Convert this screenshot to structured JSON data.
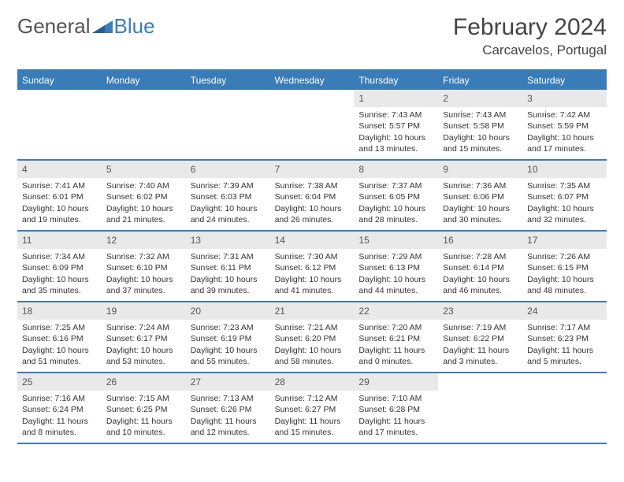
{
  "brand": {
    "part1": "General",
    "part2": "Blue"
  },
  "title": "February 2024",
  "location": "Carcavelos, Portugal",
  "colors": {
    "accent": "#3a7cb8",
    "header_bg": "#e9e9e9",
    "text": "#333333",
    "muted": "#555555",
    "white": "#ffffff"
  },
  "weekdays": [
    "Sunday",
    "Monday",
    "Tuesday",
    "Wednesday",
    "Thursday",
    "Friday",
    "Saturday"
  ],
  "weeks": [
    [
      {
        "n": "",
        "sunrise": "",
        "sunset": "",
        "daylight": ""
      },
      {
        "n": "",
        "sunrise": "",
        "sunset": "",
        "daylight": ""
      },
      {
        "n": "",
        "sunrise": "",
        "sunset": "",
        "daylight": ""
      },
      {
        "n": "",
        "sunrise": "",
        "sunset": "",
        "daylight": ""
      },
      {
        "n": "1",
        "sunrise": "Sunrise: 7:43 AM",
        "sunset": "Sunset: 5:57 PM",
        "daylight": "Daylight: 10 hours and 13 minutes."
      },
      {
        "n": "2",
        "sunrise": "Sunrise: 7:43 AM",
        "sunset": "Sunset: 5:58 PM",
        "daylight": "Daylight: 10 hours and 15 minutes."
      },
      {
        "n": "3",
        "sunrise": "Sunrise: 7:42 AM",
        "sunset": "Sunset: 5:59 PM",
        "daylight": "Daylight: 10 hours and 17 minutes."
      }
    ],
    [
      {
        "n": "4",
        "sunrise": "Sunrise: 7:41 AM",
        "sunset": "Sunset: 6:01 PM",
        "daylight": "Daylight: 10 hours and 19 minutes."
      },
      {
        "n": "5",
        "sunrise": "Sunrise: 7:40 AM",
        "sunset": "Sunset: 6:02 PM",
        "daylight": "Daylight: 10 hours and 21 minutes."
      },
      {
        "n": "6",
        "sunrise": "Sunrise: 7:39 AM",
        "sunset": "Sunset: 6:03 PM",
        "daylight": "Daylight: 10 hours and 24 minutes."
      },
      {
        "n": "7",
        "sunrise": "Sunrise: 7:38 AM",
        "sunset": "Sunset: 6:04 PM",
        "daylight": "Daylight: 10 hours and 26 minutes."
      },
      {
        "n": "8",
        "sunrise": "Sunrise: 7:37 AM",
        "sunset": "Sunset: 6:05 PM",
        "daylight": "Daylight: 10 hours and 28 minutes."
      },
      {
        "n": "9",
        "sunrise": "Sunrise: 7:36 AM",
        "sunset": "Sunset: 6:06 PM",
        "daylight": "Daylight: 10 hours and 30 minutes."
      },
      {
        "n": "10",
        "sunrise": "Sunrise: 7:35 AM",
        "sunset": "Sunset: 6:07 PM",
        "daylight": "Daylight: 10 hours and 32 minutes."
      }
    ],
    [
      {
        "n": "11",
        "sunrise": "Sunrise: 7:34 AM",
        "sunset": "Sunset: 6:09 PM",
        "daylight": "Daylight: 10 hours and 35 minutes."
      },
      {
        "n": "12",
        "sunrise": "Sunrise: 7:32 AM",
        "sunset": "Sunset: 6:10 PM",
        "daylight": "Daylight: 10 hours and 37 minutes."
      },
      {
        "n": "13",
        "sunrise": "Sunrise: 7:31 AM",
        "sunset": "Sunset: 6:11 PM",
        "daylight": "Daylight: 10 hours and 39 minutes."
      },
      {
        "n": "14",
        "sunrise": "Sunrise: 7:30 AM",
        "sunset": "Sunset: 6:12 PM",
        "daylight": "Daylight: 10 hours and 41 minutes."
      },
      {
        "n": "15",
        "sunrise": "Sunrise: 7:29 AM",
        "sunset": "Sunset: 6:13 PM",
        "daylight": "Daylight: 10 hours and 44 minutes."
      },
      {
        "n": "16",
        "sunrise": "Sunrise: 7:28 AM",
        "sunset": "Sunset: 6:14 PM",
        "daylight": "Daylight: 10 hours and 46 minutes."
      },
      {
        "n": "17",
        "sunrise": "Sunrise: 7:26 AM",
        "sunset": "Sunset: 6:15 PM",
        "daylight": "Daylight: 10 hours and 48 minutes."
      }
    ],
    [
      {
        "n": "18",
        "sunrise": "Sunrise: 7:25 AM",
        "sunset": "Sunset: 6:16 PM",
        "daylight": "Daylight: 10 hours and 51 minutes."
      },
      {
        "n": "19",
        "sunrise": "Sunrise: 7:24 AM",
        "sunset": "Sunset: 6:17 PM",
        "daylight": "Daylight: 10 hours and 53 minutes."
      },
      {
        "n": "20",
        "sunrise": "Sunrise: 7:23 AM",
        "sunset": "Sunset: 6:19 PM",
        "daylight": "Daylight: 10 hours and 55 minutes."
      },
      {
        "n": "21",
        "sunrise": "Sunrise: 7:21 AM",
        "sunset": "Sunset: 6:20 PM",
        "daylight": "Daylight: 10 hours and 58 minutes."
      },
      {
        "n": "22",
        "sunrise": "Sunrise: 7:20 AM",
        "sunset": "Sunset: 6:21 PM",
        "daylight": "Daylight: 11 hours and 0 minutes."
      },
      {
        "n": "23",
        "sunrise": "Sunrise: 7:19 AM",
        "sunset": "Sunset: 6:22 PM",
        "daylight": "Daylight: 11 hours and 3 minutes."
      },
      {
        "n": "24",
        "sunrise": "Sunrise: 7:17 AM",
        "sunset": "Sunset: 6:23 PM",
        "daylight": "Daylight: 11 hours and 5 minutes."
      }
    ],
    [
      {
        "n": "25",
        "sunrise": "Sunrise: 7:16 AM",
        "sunset": "Sunset: 6:24 PM",
        "daylight": "Daylight: 11 hours and 8 minutes."
      },
      {
        "n": "26",
        "sunrise": "Sunrise: 7:15 AM",
        "sunset": "Sunset: 6:25 PM",
        "daylight": "Daylight: 11 hours and 10 minutes."
      },
      {
        "n": "27",
        "sunrise": "Sunrise: 7:13 AM",
        "sunset": "Sunset: 6:26 PM",
        "daylight": "Daylight: 11 hours and 12 minutes."
      },
      {
        "n": "28",
        "sunrise": "Sunrise: 7:12 AM",
        "sunset": "Sunset: 6:27 PM",
        "daylight": "Daylight: 11 hours and 15 minutes."
      },
      {
        "n": "29",
        "sunrise": "Sunrise: 7:10 AM",
        "sunset": "Sunset: 6:28 PM",
        "daylight": "Daylight: 11 hours and 17 minutes."
      },
      {
        "n": "",
        "sunrise": "",
        "sunset": "",
        "daylight": ""
      },
      {
        "n": "",
        "sunrise": "",
        "sunset": "",
        "daylight": ""
      }
    ]
  ]
}
